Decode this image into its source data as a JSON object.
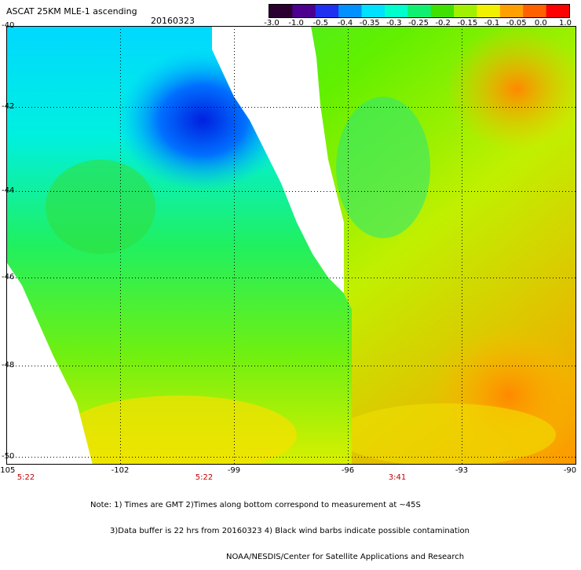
{
  "header": {
    "title": "ASCAT 25KM MLE-1 ascending",
    "date": "20160323"
  },
  "colorbar": {
    "labels": [
      "-3.0",
      "-1.0",
      "-0.5",
      "-0.4",
      "-0.35",
      "-0.3",
      "-0.25",
      "-0.2",
      "-0.15",
      "-0.1",
      "-0.05",
      "0.0",
      "1.0"
    ],
    "colors": [
      "#2a0030",
      "#4b0090",
      "#2030f0",
      "#0090ff",
      "#00e0ff",
      "#00ffcc",
      "#10f070",
      "#40e000",
      "#a0f000",
      "#f0f000",
      "#ffa000",
      "#ff6000",
      "#ff0000"
    ]
  },
  "axes": {
    "lat_labels": [
      "-40",
      "-42",
      "-44",
      "-46",
      "-48",
      "-50"
    ],
    "lon_labels": [
      "-105",
      "-102",
      "-99",
      "-96",
      "-93",
      "-90"
    ],
    "time_labels": [
      "5:22",
      "5:22",
      "3:41"
    ]
  },
  "notes": {
    "line1": "Note: 1) Times are GMT 2)Times along bottom correspond to measurement at ~45S",
    "line2": "3)Data buffer is 22 hrs from 20160323 4) Black wind barbs indicate possible contamination",
    "line3": "NOAA/NESDIS/Center for Satellite Applications and Research"
  }
}
